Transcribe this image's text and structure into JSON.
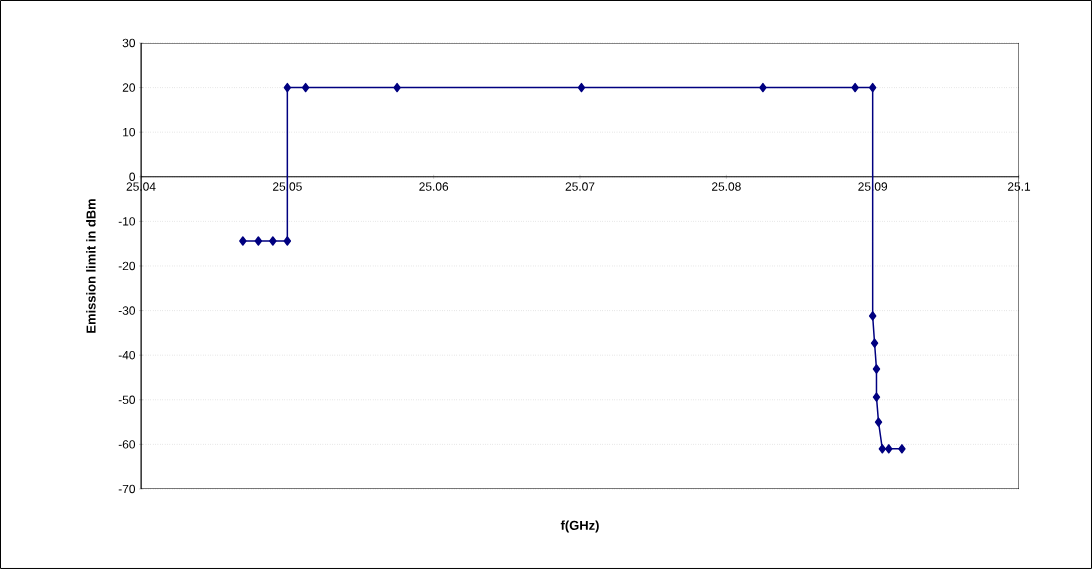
{
  "chart_data": {
    "type": "line",
    "xlabel": "f(GHz)",
    "ylabel": "Emission limit in dBm",
    "series": [
      {
        "color": "#000080",
        "x": [
          25.04696,
          25.04802,
          25.04901,
          25.05,
          25.05,
          25.05125,
          25.0575,
          25.0701,
          25.0825,
          25.0888,
          25.09,
          25.09,
          25.09013,
          25.09026,
          25.09026,
          25.0904,
          25.09066,
          25.0911,
          25.092
        ],
        "values": [
          -14.4,
          -14.4,
          -14.4,
          -14.4,
          20,
          20,
          20,
          20,
          20,
          20,
          20,
          -31.2,
          -37.3,
          -43.1,
          -49.4,
          -55,
          -61,
          -61,
          -61
        ]
      }
    ],
    "xlim": [
      25.04,
      25.1
    ],
    "ylim": [
      -70,
      30
    ],
    "xticks": [
      25.04,
      25.05,
      25.06,
      25.07,
      25.08,
      25.09,
      25.1
    ],
    "yticks": [
      -70,
      -60,
      -50,
      -40,
      -30,
      -20,
      -10,
      0,
      10,
      20,
      30
    ],
    "grid": "y",
    "marker": "diamond",
    "line_style": "solid"
  }
}
